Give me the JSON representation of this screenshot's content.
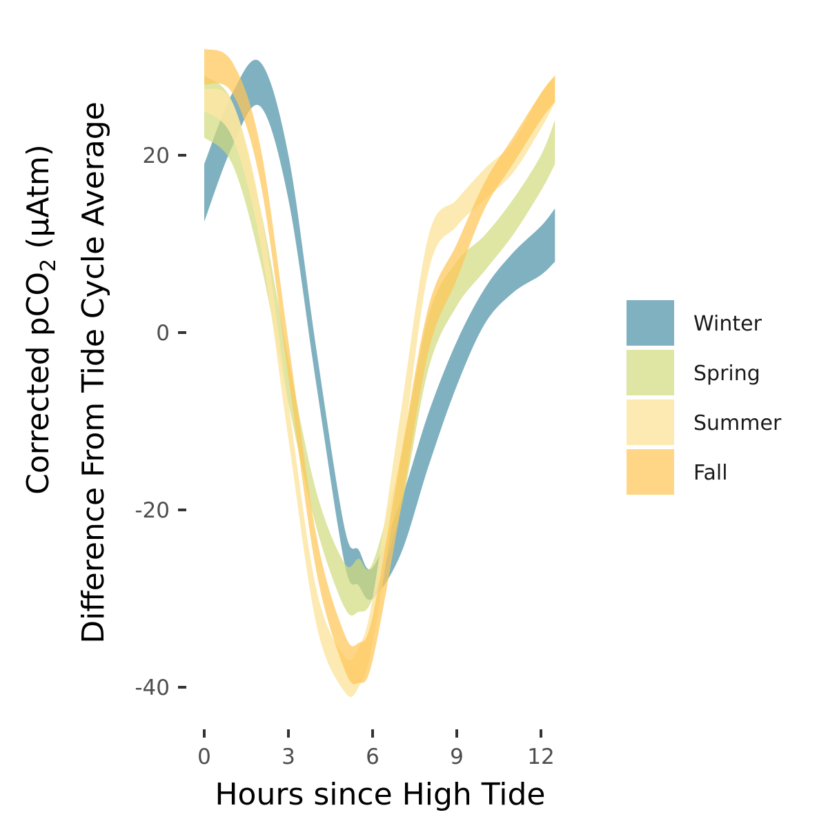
{
  "chart_data": {
    "type": "area",
    "xlabel": "Hours since High Tide",
    "ylabel_line1_prefix": "Corrected pCO",
    "ylabel_line1_subscript": "2",
    "ylabel_line1_suffix": " (μAtm)",
    "ylabel_line2": "Difference From Tide Cycle Average",
    "xlim": [
      -0.3,
      12.6
    ],
    "ylim": [
      -42,
      32
    ],
    "x_ticks": [
      0,
      3,
      6,
      9,
      12
    ],
    "x_tick_labels": [
      "0",
      "3",
      "6",
      "9",
      "12"
    ],
    "y_ticks": [
      20,
      0,
      -20,
      -40
    ],
    "y_tick_labels": [
      "20",
      "0",
      "-20",
      "-40"
    ],
    "grid": false,
    "legend_position": "right",
    "series": [
      {
        "name": "Winter",
        "color": "#4f93a8",
        "opacity": 0.72,
        "x": [
          0,
          1,
          2,
          3,
          4,
          5,
          5.5,
          6,
          7,
          8,
          9,
          10,
          11,
          12,
          12.5
        ],
        "lower": [
          12.5,
          21,
          25.5,
          15,
          -6,
          -26,
          -28.5,
          -30,
          -25,
          -15,
          -6,
          1,
          4.5,
          6.5,
          8
        ],
        "upper": [
          19,
          27,
          30.5,
          20,
          -2,
          -22,
          -24.5,
          -26.5,
          -19,
          -9,
          -1,
          5,
          9,
          12,
          14
        ]
      },
      {
        "name": "Spring",
        "color": "#d2da7a",
        "opacity": 0.7,
        "x": [
          0,
          1,
          2,
          3,
          4,
          5,
          5.5,
          6,
          7,
          8,
          9,
          10,
          11,
          12,
          12.5
        ],
        "lower": [
          22,
          19,
          8,
          -8,
          -22,
          -31,
          -31.5,
          -30,
          -20,
          -4,
          3,
          7,
          11,
          16,
          19
        ],
        "upper": [
          29,
          26,
          14,
          -3,
          -18,
          -26,
          -25.5,
          -26,
          -14,
          2,
          8,
          11,
          15,
          20,
          24
        ]
      },
      {
        "name": "Summer",
        "color": "#fde6a5",
        "opacity": 0.85,
        "x": [
          0,
          1,
          2,
          3,
          4,
          5,
          5.5,
          6,
          7,
          8,
          9,
          10,
          11,
          12,
          12.5
        ],
        "lower": [
          25,
          22,
          10,
          -12,
          -33,
          -40.5,
          -40,
          -35,
          -15,
          7,
          12,
          15,
          18,
          23,
          26
        ],
        "upper": [
          27.5,
          26,
          14,
          -8,
          -29,
          -36.5,
          -35.5,
          -30,
          -9,
          11,
          15,
          18.5,
          21.5,
          27,
          29
        ]
      },
      {
        "name": "Fall",
        "color": "#fdc657",
        "opacity": 0.72,
        "x": [
          0,
          1,
          2,
          3,
          4,
          5,
          5.5,
          6,
          7,
          8,
          9,
          10,
          11,
          12,
          12.5
        ],
        "lower": [
          28,
          27,
          17,
          -5,
          -27,
          -38,
          -39.5,
          -37,
          -20,
          -2,
          6,
          14,
          19,
          24,
          26
        ],
        "upper": [
          32,
          30.5,
          21,
          -1,
          -23,
          -34,
          -35,
          -32,
          -14,
          3,
          10,
          17,
          22,
          27,
          29
        ]
      }
    ]
  }
}
